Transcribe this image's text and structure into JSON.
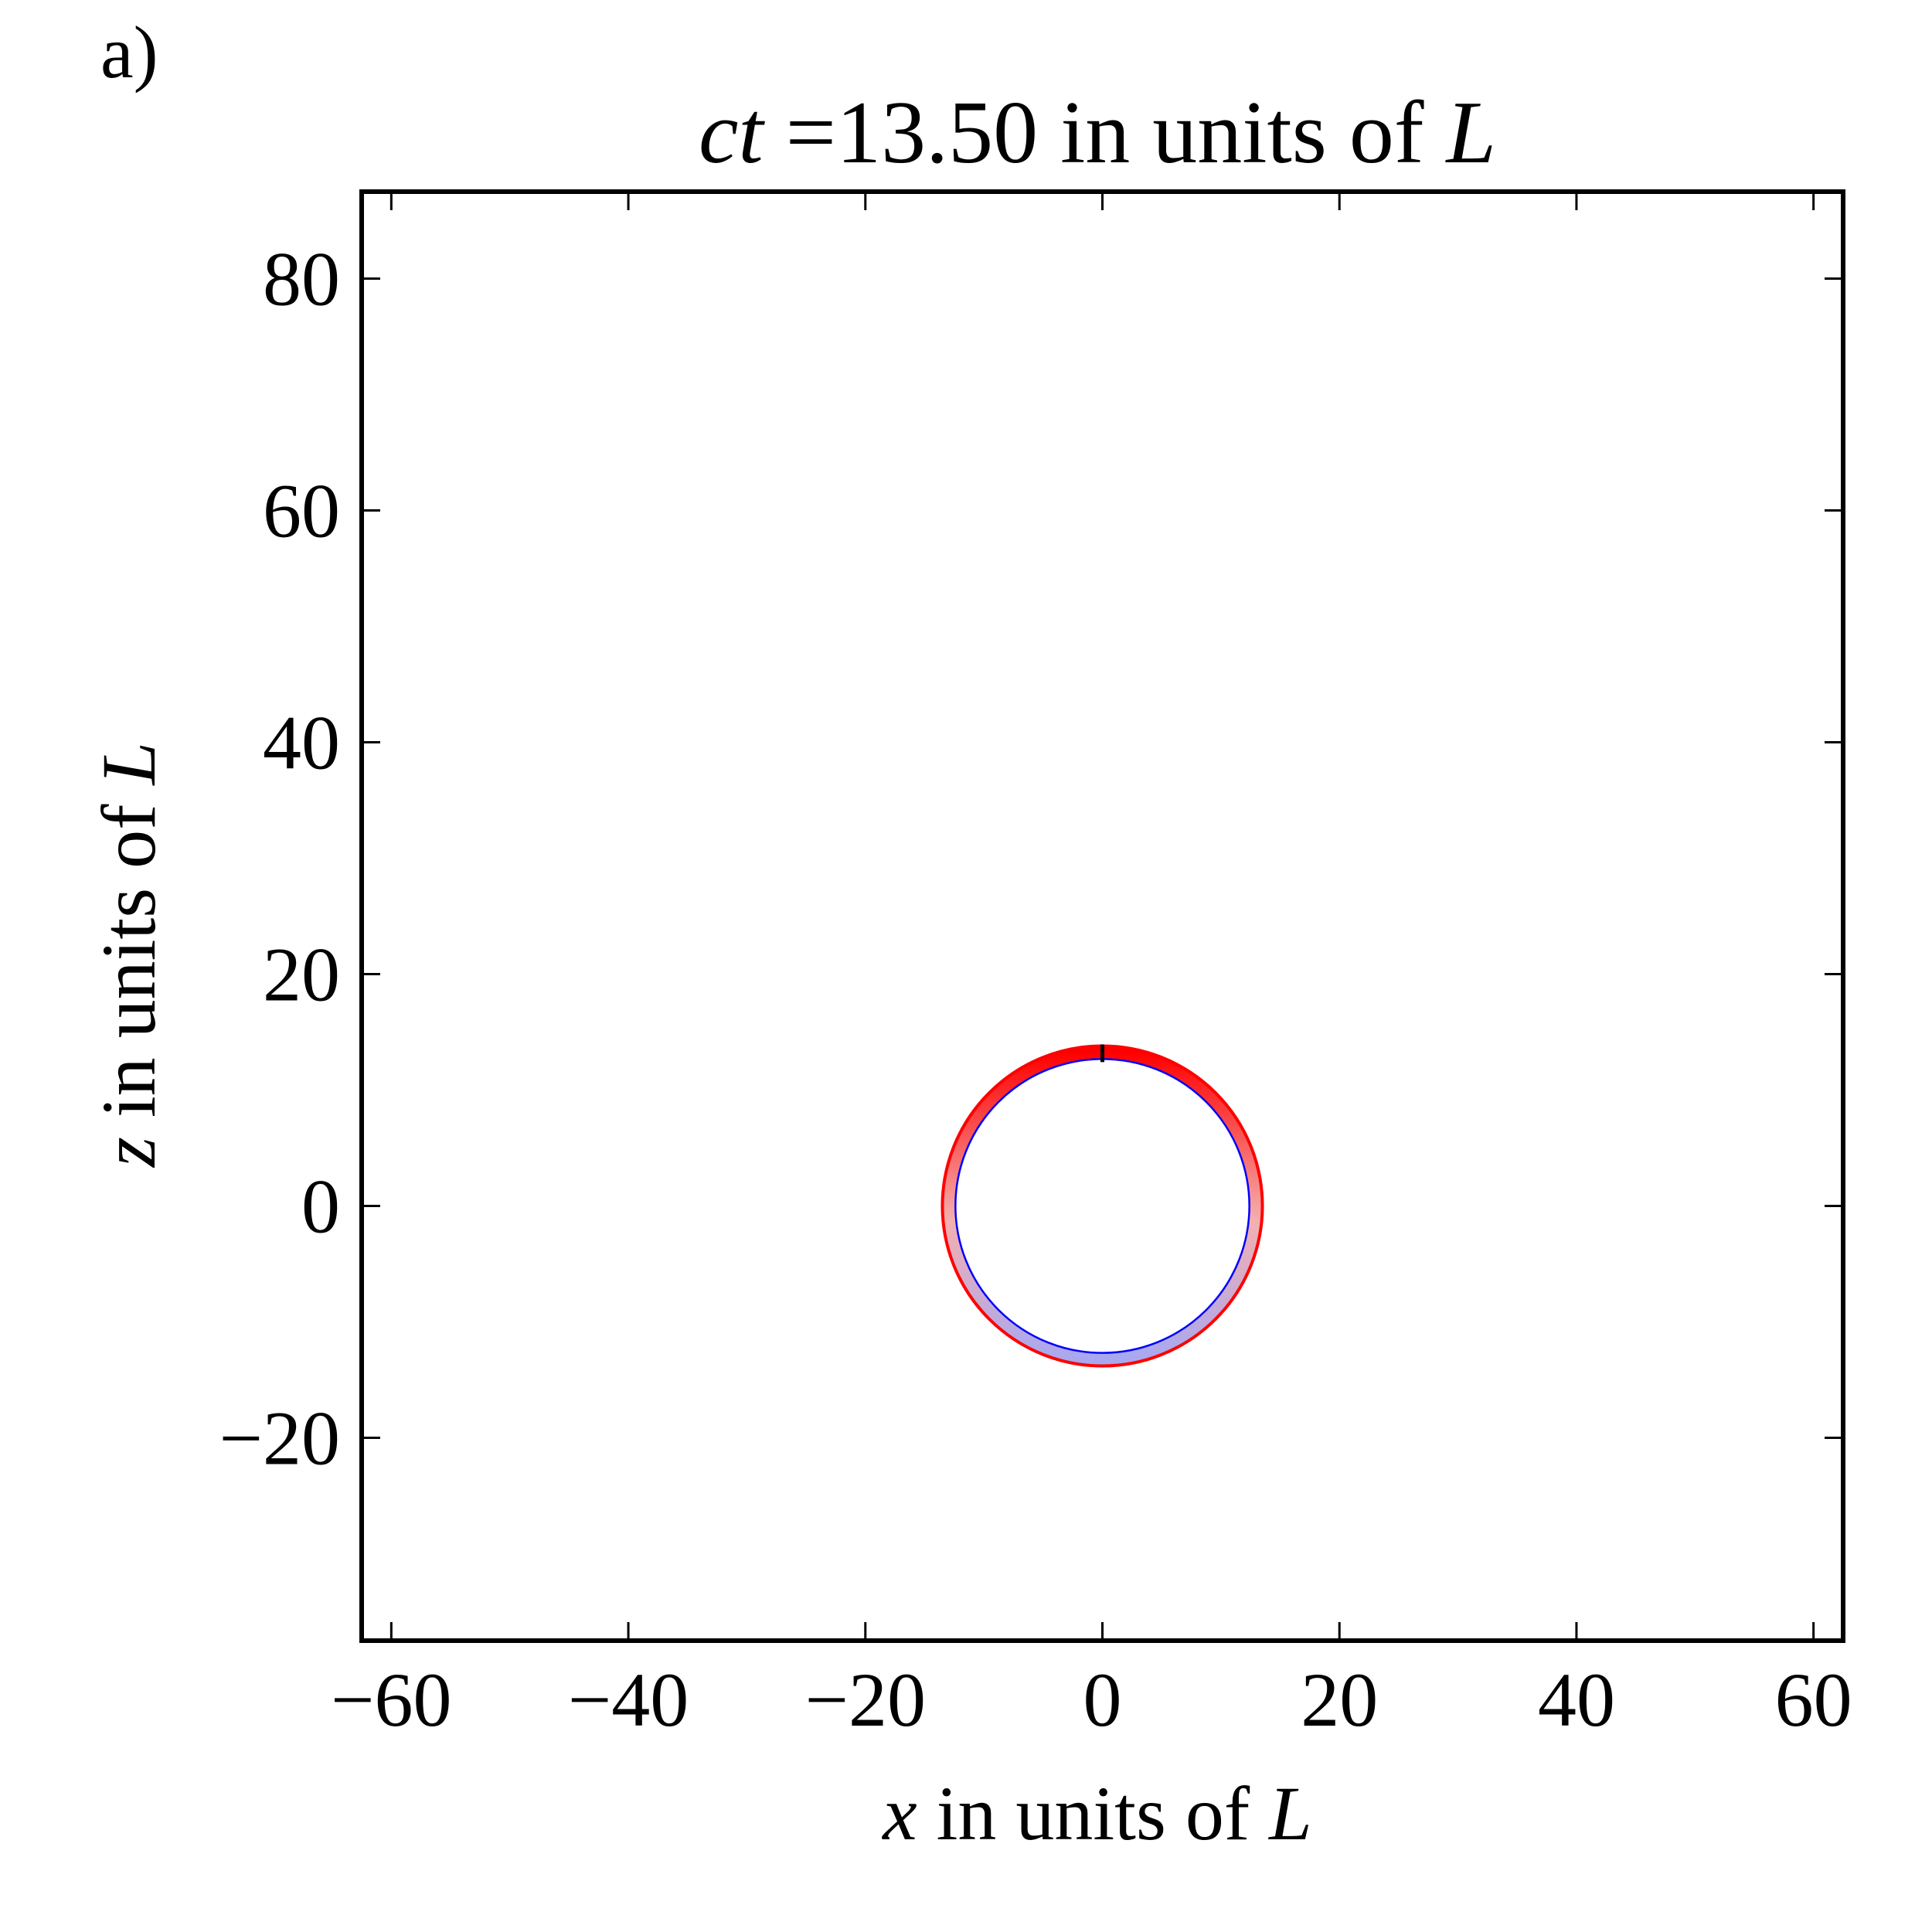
{
  "figure": {
    "panel_label": "a)"
  },
  "chart_data": {
    "type": "scatter",
    "title": {
      "prefix": "ct",
      "value": " =13.50 in units of ",
      "unit": "L"
    },
    "xlabel": {
      "var": "x",
      "text": " in units of ",
      "unit": "L"
    },
    "ylabel": {
      "var": "z",
      "text": " in units of ",
      "unit": "L"
    },
    "xlim": [
      -62.5,
      62.5
    ],
    "ylim": [
      -37.5,
      87.5
    ],
    "xticks": [
      -60,
      -40,
      -20,
      0,
      20,
      40,
      60
    ],
    "xtick_labels": [
      "−60",
      "−40",
      "−20",
      "0",
      "20",
      "40",
      "60"
    ],
    "yticks": [
      -20,
      0,
      20,
      40,
      60,
      80
    ],
    "ytick_labels": [
      "−20",
      "0",
      "20",
      "40",
      "60",
      "80"
    ],
    "grid": false,
    "legend": "none",
    "shell": {
      "center": [
        0,
        0
      ],
      "outer_radius": 13.5,
      "inner_radius": 12.4,
      "outer_color": "#ff0000",
      "inner_color": "#0000ff",
      "light_blue": "#a8a8f0",
      "light_red": "#f4b0b0",
      "peak_color": "#000000"
    }
  }
}
